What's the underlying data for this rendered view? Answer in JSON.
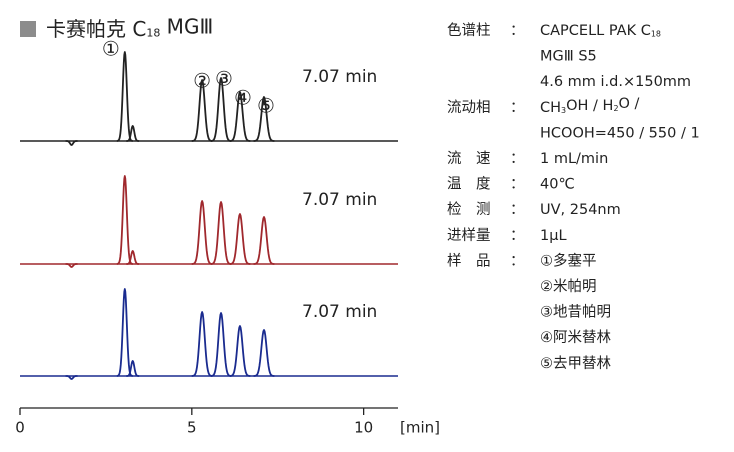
{
  "chart_data": {
    "type": "line",
    "title": [
      {
        "text": "卡赛帕克 C"
      },
      {
        "sub": "18"
      },
      {
        "text": " MGⅢ"
      }
    ],
    "x_label": "[min]",
    "xlim": [
      0,
      11
    ],
    "xticks": [
      0,
      5,
      10
    ],
    "ylim": [
      0,
      100
    ],
    "series": [
      {
        "color": "#222222",
        "annotation": "7.07 min",
        "x": [
          1.5,
          3.05,
          3.28,
          5.3,
          5.85,
          6.4,
          7.1
        ],
        "values": [
          -4,
          89,
          15,
          61,
          63,
          49,
          44
        ],
        "labels": [
          null,
          "①",
          null,
          "②",
          "③",
          "④",
          "⑤"
        ]
      },
      {
        "color": "#a0282d",
        "annotation": "7.07 min",
        "x": [
          1.5,
          3.05,
          3.28,
          5.3,
          5.85,
          6.4,
          7.1
        ],
        "values": [
          -3,
          88,
          13,
          63,
          62,
          50,
          47
        ]
      },
      {
        "color": "#1a2b8f",
        "annotation": "7.07 min",
        "x": [
          1.5,
          3.05,
          3.28,
          5.3,
          5.85,
          6.4,
          7.1
        ],
        "values": [
          -3,
          87,
          15,
          64,
          63,
          50,
          46
        ]
      }
    ]
  },
  "conditions": {
    "separator": "：",
    "rows": [
      {
        "label": "色谱柱",
        "lines": [
          [
            {
              "text": "CAPCELL PAK C"
            },
            {
              "sub": "18"
            }
          ],
          [
            {
              "text": "MGⅢ S5"
            }
          ],
          [
            {
              "text": "4.6 mm i.d.×150mm"
            }
          ]
        ]
      },
      {
        "label": "流动相",
        "lines": [
          [
            {
              "text": "CH"
            },
            {
              "sub": "3"
            },
            {
              "text": "OH / H"
            },
            {
              "sub": "2"
            },
            {
              "text": "O /"
            }
          ],
          [
            {
              "text": "HCOOH=450 / 550 / 1"
            }
          ]
        ]
      },
      {
        "label": "流　速",
        "lines": [
          [
            {
              "text": "1 mL/min"
            }
          ]
        ]
      },
      {
        "label": "温　度",
        "lines": [
          [
            {
              "text": "40℃"
            }
          ]
        ]
      },
      {
        "label": "检　测",
        "lines": [
          [
            {
              "text": "UV, 254nm"
            }
          ]
        ]
      },
      {
        "label": "进样量",
        "lines": [
          [
            {
              "text": "1μL"
            }
          ]
        ]
      },
      {
        "label": "样　品",
        "lines": [
          [
            {
              "text": "①多塞平"
            }
          ],
          [
            {
              "text": "②米帕明"
            }
          ],
          [
            {
              "text": "③地昔帕明"
            }
          ],
          [
            {
              "text": "④阿米替林"
            }
          ],
          [
            {
              "text": "⑤去甲替林"
            }
          ]
        ]
      }
    ]
  }
}
